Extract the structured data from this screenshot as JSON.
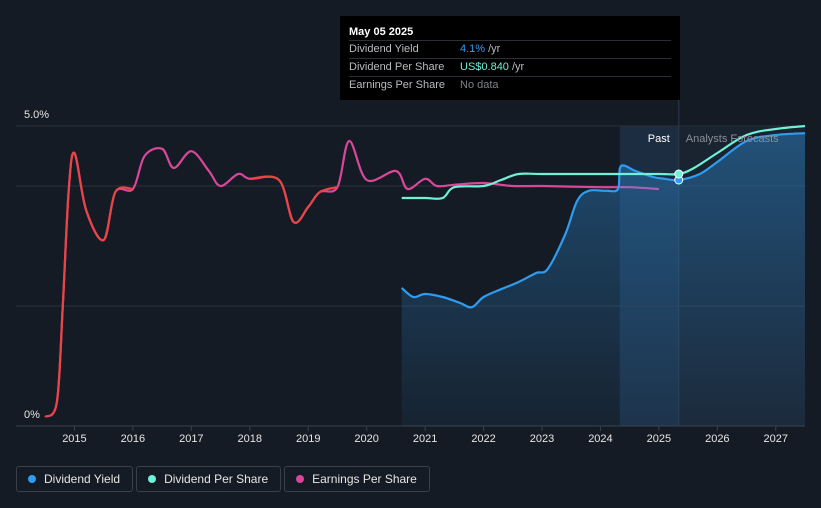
{
  "tooltip": {
    "date": "May 05 2025",
    "rows": [
      {
        "label": "Dividend Yield",
        "value": "4.1%",
        "unit": "/yr",
        "color": "#2f9cf0"
      },
      {
        "label": "Dividend Per Share",
        "value": "US$0.840",
        "unit": "/yr",
        "color": "#6ff0d8"
      },
      {
        "label": "Earnings Per Share",
        "value": "No data",
        "unit": "",
        "color": "#7d8187"
      }
    ]
  },
  "regions": {
    "past_label": "Past",
    "forecast_label": "Analysts Forecasts"
  },
  "legend": [
    {
      "label": "Dividend Yield",
      "color": "#2f9cf0"
    },
    {
      "label": "Dividend Per Share",
      "color": "#6ff0d8"
    },
    {
      "label": "Earnings Per Share",
      "color": "#d9479a"
    }
  ],
  "chart_data": {
    "type": "line",
    "y_tick_labels": [
      "5.0%",
      "0%"
    ],
    "y_ticks": [
      5.0,
      0
    ],
    "ylim": [
      0,
      5.0
    ],
    "xlim": [
      2014.0,
      2027.5
    ],
    "x_ticks": [
      2015,
      2016,
      2017,
      2018,
      2019,
      2020,
      2021,
      2022,
      2023,
      2024,
      2025,
      2026,
      2027
    ],
    "x_tick_labels": [
      "2015",
      "2016",
      "2017",
      "2018",
      "2019",
      "2020",
      "2021",
      "2022",
      "2023",
      "2024",
      "2025",
      "2026",
      "2027"
    ],
    "past_end": 2025.34,
    "highlight_start": 2024.33,
    "series": [
      {
        "name": "Dividend Yield",
        "color": "#2f9cf0",
        "area": true,
        "points": [
          [
            2020.6,
            2.3
          ],
          [
            2020.8,
            2.15
          ],
          [
            2021.0,
            2.2
          ],
          [
            2021.3,
            2.15
          ],
          [
            2021.6,
            2.05
          ],
          [
            2021.8,
            1.98
          ],
          [
            2022.0,
            2.15
          ],
          [
            2022.3,
            2.28
          ],
          [
            2022.6,
            2.4
          ],
          [
            2022.9,
            2.55
          ],
          [
            2023.1,
            2.62
          ],
          [
            2023.4,
            3.2
          ],
          [
            2023.6,
            3.75
          ],
          [
            2023.8,
            3.92
          ],
          [
            2024.1,
            3.92
          ],
          [
            2024.3,
            3.95
          ],
          [
            2024.35,
            4.33
          ],
          [
            2024.6,
            4.25
          ],
          [
            2024.9,
            4.15
          ],
          [
            2025.1,
            4.12
          ],
          [
            2025.34,
            4.1
          ],
          [
            2025.7,
            4.2
          ],
          [
            2026.0,
            4.4
          ],
          [
            2026.5,
            4.75
          ],
          [
            2027.0,
            4.85
          ],
          [
            2027.5,
            4.88
          ]
        ]
      },
      {
        "name": "Dividend Per Share",
        "color": "#6ff0d8",
        "points": [
          [
            2020.6,
            3.8
          ],
          [
            2021.0,
            3.8
          ],
          [
            2021.3,
            3.8
          ],
          [
            2021.5,
            3.98
          ],
          [
            2022.0,
            4.0
          ],
          [
            2022.3,
            4.1
          ],
          [
            2022.6,
            4.2
          ],
          [
            2023.0,
            4.2
          ],
          [
            2024.0,
            4.2
          ],
          [
            2025.0,
            4.2
          ],
          [
            2025.34,
            4.2
          ],
          [
            2025.6,
            4.3
          ],
          [
            2026.0,
            4.55
          ],
          [
            2026.5,
            4.85
          ],
          [
            2027.0,
            4.95
          ],
          [
            2027.5,
            5.0
          ]
        ]
      },
      {
        "name": "Earnings Per Share",
        "color": "#d9479a",
        "points": [
          [
            2014.5,
            0.15
          ],
          [
            2014.7,
            0.4
          ],
          [
            2014.8,
            2.0
          ],
          [
            2014.9,
            3.9
          ],
          [
            2015.0,
            4.55
          ],
          [
            2015.2,
            3.6
          ],
          [
            2015.5,
            3.1
          ],
          [
            2015.7,
            3.9
          ],
          [
            2016.0,
            3.95
          ],
          [
            2016.2,
            4.5
          ],
          [
            2016.5,
            4.62
          ],
          [
            2016.7,
            4.3
          ],
          [
            2017.0,
            4.58
          ],
          [
            2017.3,
            4.25
          ],
          [
            2017.5,
            4.0
          ],
          [
            2017.8,
            4.2
          ],
          [
            2018.0,
            4.12
          ],
          [
            2018.5,
            4.1
          ],
          [
            2018.75,
            3.4
          ],
          [
            2019.0,
            3.65
          ],
          [
            2019.2,
            3.9
          ],
          [
            2019.5,
            3.98
          ],
          [
            2019.7,
            4.75
          ],
          [
            2020.0,
            4.1
          ],
          [
            2020.5,
            4.25
          ],
          [
            2020.7,
            3.95
          ],
          [
            2021.0,
            4.12
          ],
          [
            2021.2,
            4.0
          ],
          [
            2021.5,
            4.02
          ],
          [
            2022.0,
            4.05
          ],
          [
            2022.5,
            4.0
          ],
          [
            2023.0,
            4.0
          ],
          [
            2024.0,
            3.98
          ],
          [
            2024.5,
            3.98
          ],
          [
            2025.0,
            3.95
          ]
        ]
      }
    ]
  }
}
